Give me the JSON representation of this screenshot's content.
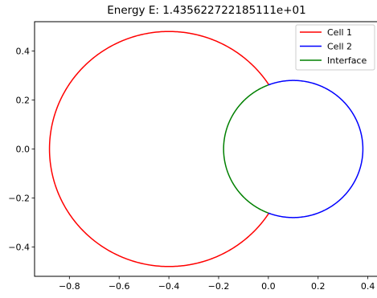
{
  "chart_data": {
    "type": "line",
    "title": "Energy E: 1.435622722185111e+01",
    "xlabel": "",
    "ylabel": "",
    "xlim": [
      -0.94,
      0.44
    ],
    "ylim": [
      -0.52,
      0.52
    ],
    "xticks": [
      -0.8,
      -0.6,
      -0.4,
      -0.2,
      0.0,
      0.2,
      0.4
    ],
    "xtick_labels": [
      "−0.8",
      "−0.6",
      "−0.4",
      "−0.2",
      "0.0",
      "0.2",
      "0.4"
    ],
    "yticks": [
      -0.4,
      -0.2,
      0.0,
      0.2,
      0.4
    ],
    "ytick_labels": [
      "−0.4",
      "−0.2",
      "0.0",
      "0.2",
      "0.4"
    ],
    "grid": false,
    "legend_position": "top-right",
    "series": [
      {
        "name": "Cell 1",
        "color": "#ff0000",
        "shape": "circular-arc",
        "center": [
          -0.4,
          0.0
        ],
        "radius": 0.48,
        "arc_from": [
          0.0,
          0.26
        ],
        "arc_to": [
          0.0,
          -0.26
        ],
        "arc_side": "left"
      },
      {
        "name": "Cell 2",
        "color": "#0000ff",
        "shape": "circular-arc",
        "center": [
          0.1,
          0.0
        ],
        "radius": 0.28,
        "arc_from": [
          0.0,
          0.26
        ],
        "arc_to": [
          0.0,
          -0.26
        ],
        "arc_side": "right"
      },
      {
        "name": "Interface",
        "color": "#008000",
        "shape": "circular-arc",
        "center": [
          0.1,
          0.0
        ],
        "radius": 0.28,
        "arc_from": [
          0.0,
          0.26
        ],
        "arc_to": [
          0.0,
          -0.26
        ],
        "arc_side": "left"
      }
    ]
  }
}
